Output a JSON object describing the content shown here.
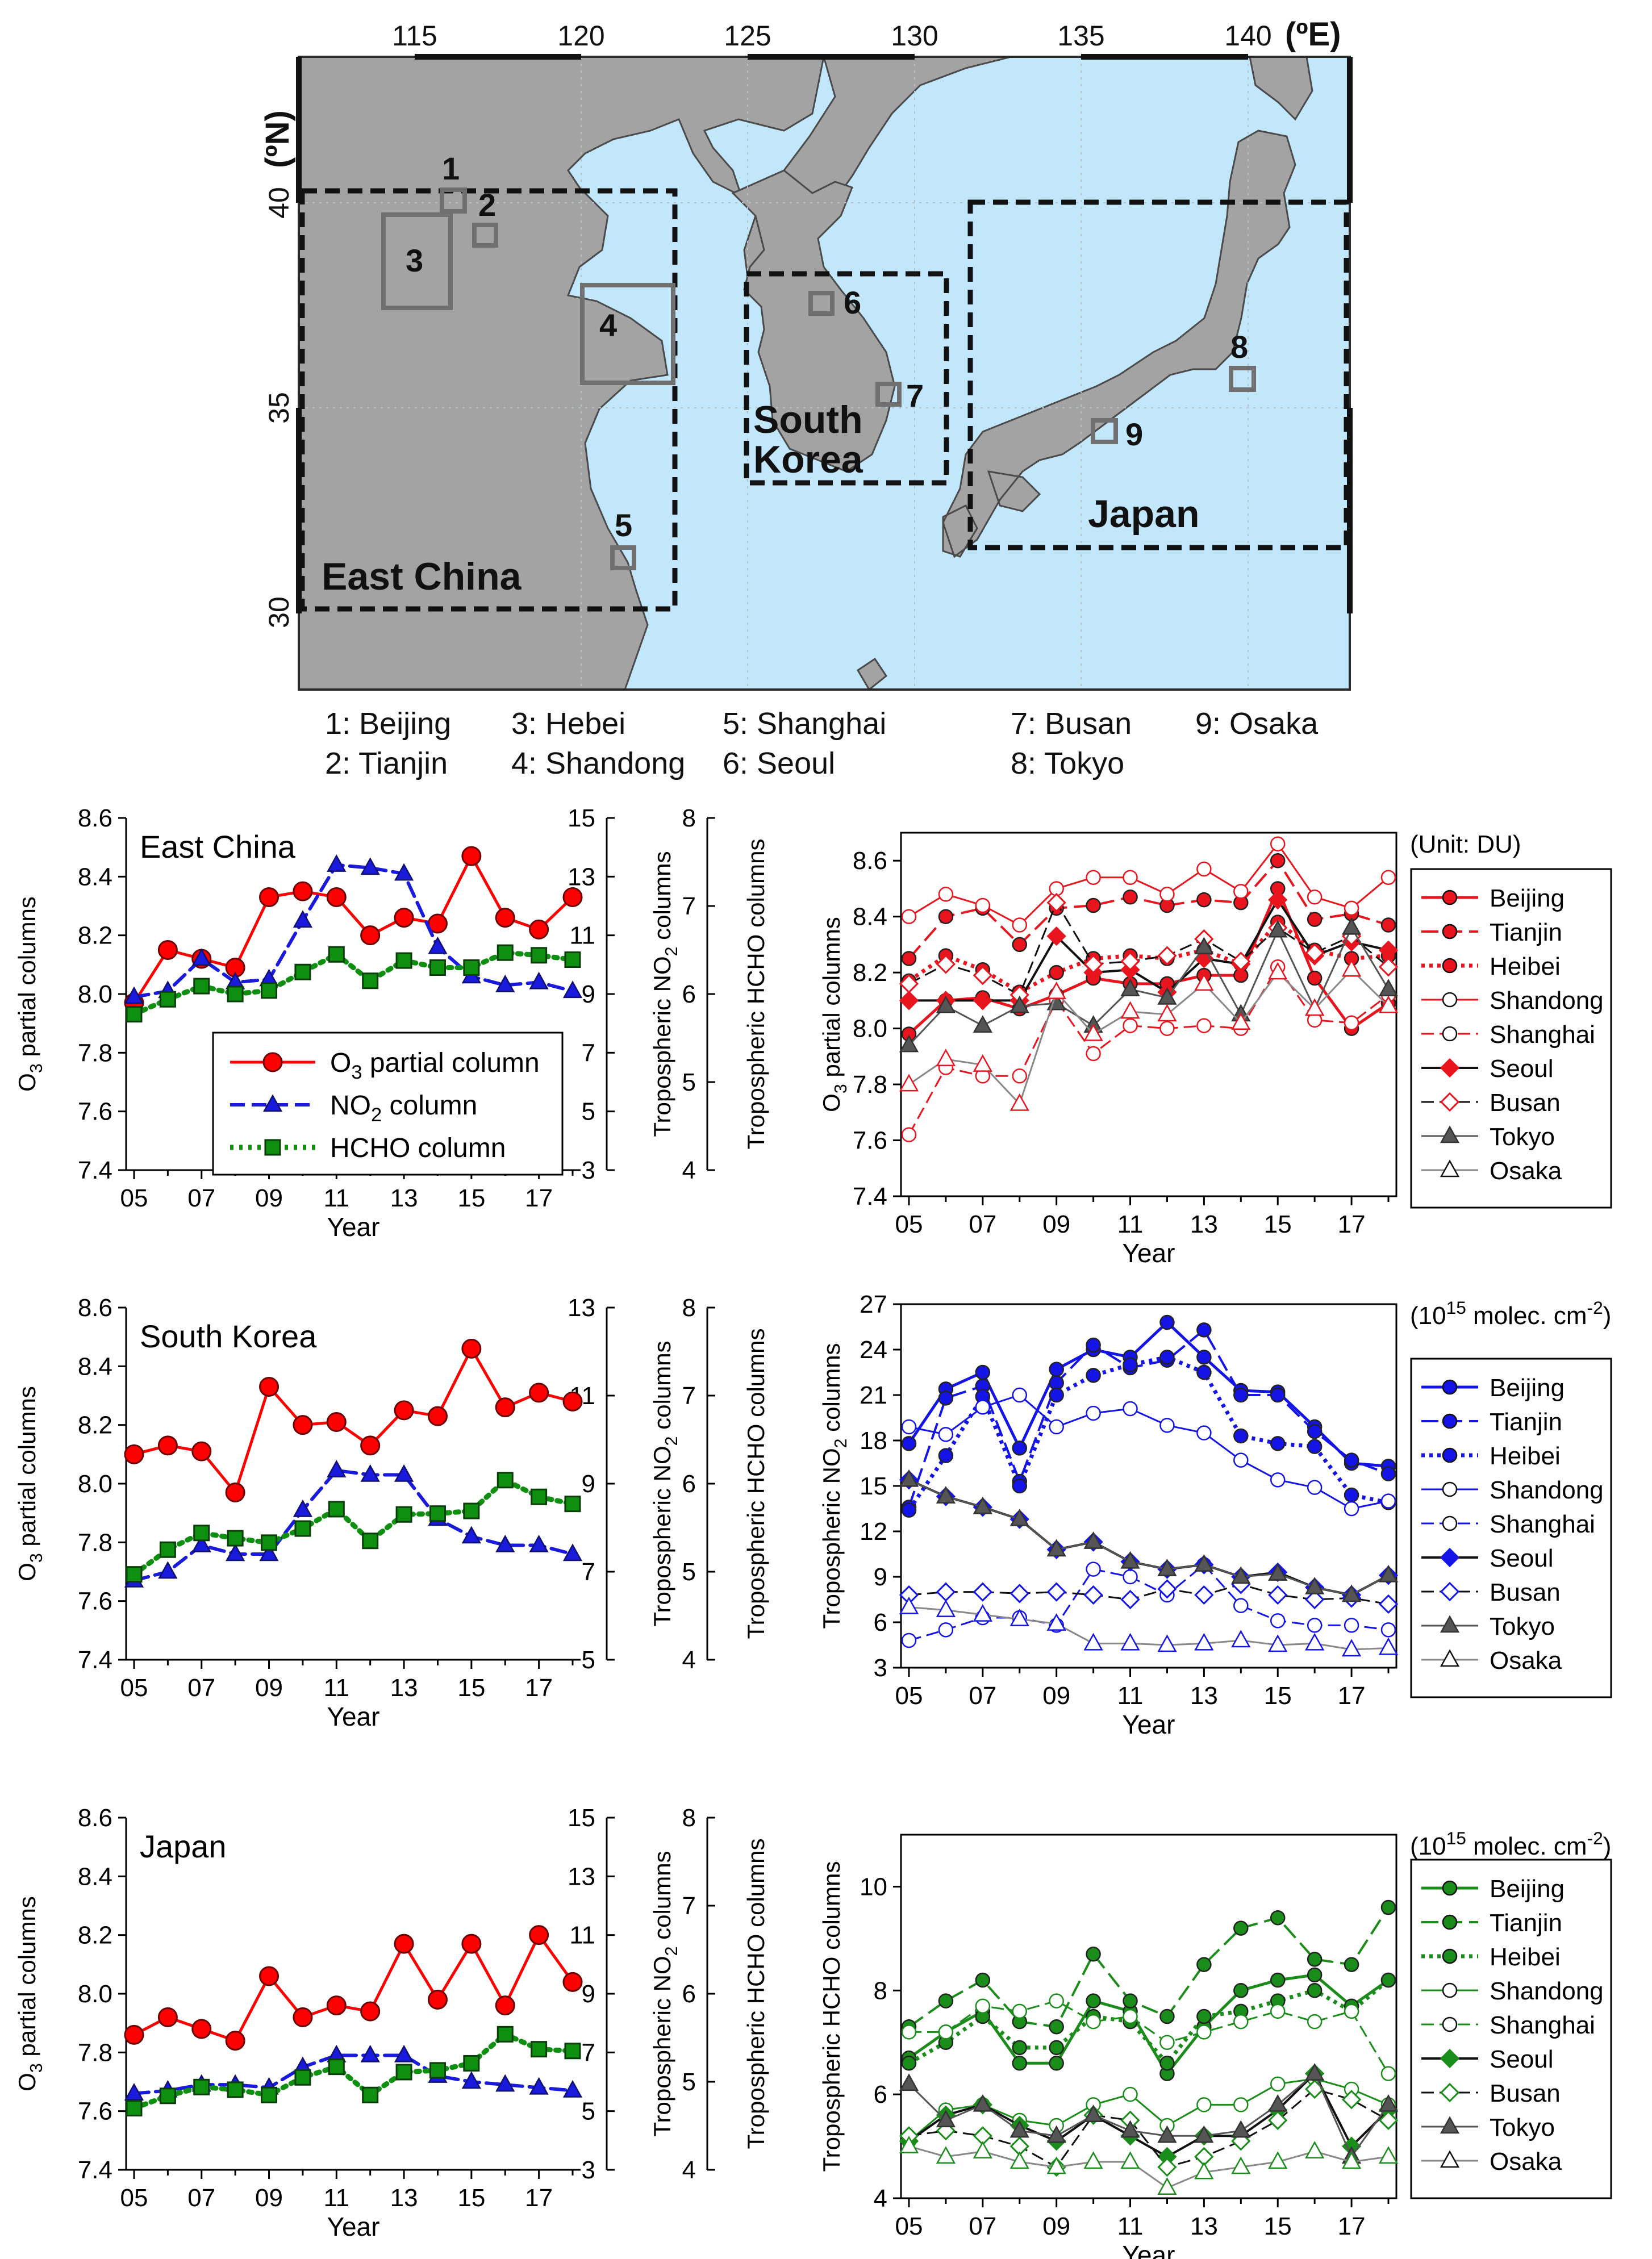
{
  "map": {
    "lon_ticks": [
      "115",
      "120",
      "125",
      "130",
      "135",
      "140"
    ],
    "lon_unit": "(ºE)",
    "lat_ticks": [
      "30",
      "35",
      "40"
    ],
    "lat_unit": "(ºN)",
    "region_labels": [
      "East China",
      "South Korea",
      "Japan"
    ],
    "site_numbers": [
      "1",
      "2",
      "3",
      "4",
      "5",
      "6",
      "7",
      "8",
      "9"
    ],
    "site_legend": [
      "1: Beijing",
      "2: Tianjin",
      "3: Hebei",
      "4: Shandong",
      "5: Shanghai",
      "6: Seoul",
      "7: Busan",
      "8: Tokyo",
      "9: Osaka"
    ],
    "colors": {
      "land": "#a3a3a3",
      "sea": "#c3e7fa"
    }
  },
  "years": [
    "05",
    "06",
    "07",
    "08",
    "09",
    "10",
    "11",
    "12",
    "13",
    "14",
    "15",
    "16",
    "17",
    "18"
  ],
  "xlabel": "Year",
  "x_tick_labels": [
    "05",
    "07",
    "09",
    "11",
    "13",
    "15",
    "17"
  ],
  "panels_left_legend": [
    "O3 partial column",
    "NO2 column",
    "HCHO column"
  ],
  "chart_data": [
    {
      "type": "line",
      "title": "East China",
      "xlabel": "Year",
      "ylabel": "O3 partial columns",
      "y2label": "Tropospheric NO2 columns",
      "y3label": "Tropospheric HCHO columns",
      "ylim": [
        7.4,
        8.6
      ],
      "y_ticks": [
        "7.4",
        "7.6",
        "7.8",
        "8.0",
        "8.2",
        "8.4",
        "8.6"
      ],
      "y2lim": [
        3,
        15
      ],
      "y2_ticks": [
        "3",
        "5",
        "7",
        "9",
        "11",
        "13",
        "15"
      ],
      "y3lim": [
        4,
        8
      ],
      "y3_ticks": [
        "4",
        "5",
        "6",
        "7",
        "8"
      ],
      "series": [
        {
          "name": "O3 partial column",
          "axis": "y",
          "color": "#ff0000",
          "values": [
            7.97,
            8.15,
            8.12,
            8.09,
            8.33,
            8.35,
            8.33,
            8.2,
            8.26,
            8.24,
            8.47,
            8.26,
            8.22,
            8.33
          ]
        },
        {
          "name": "NO2 column",
          "axis": "y2",
          "color": "#1a1adc",
          "values": [
            8.9,
            9.1,
            10.2,
            9.4,
            9.5,
            11.5,
            13.4,
            13.3,
            13.1,
            10.6,
            9.6,
            9.3,
            9.4,
            9.1
          ]
        },
        {
          "name": "HCHO column",
          "axis": "y3",
          "color": "#0f8f0f",
          "values": [
            5.77,
            5.94,
            6.09,
            6.0,
            6.04,
            6.25,
            6.45,
            6.15,
            6.38,
            6.3,
            6.3,
            6.47,
            6.44,
            6.39
          ]
        }
      ]
    },
    {
      "type": "line",
      "title": "",
      "xlabel": "Year",
      "ylabel": "O3 partial columns",
      "unit_note": "(Unit: DU)",
      "ylim": [
        7.4,
        8.7
      ],
      "y_ticks": [
        "7.4",
        "7.6",
        "7.8",
        "8.0",
        "8.2",
        "8.4",
        "8.6"
      ],
      "series": [
        {
          "name": "Beijing",
          "color": "#e8141e",
          "values": [
            7.98,
            8.1,
            8.11,
            8.07,
            8.12,
            8.18,
            8.16,
            8.16,
            8.19,
            8.19,
            8.5,
            8.18,
            8.0,
            8.09
          ]
        },
        {
          "name": "Tianjin",
          "color": "#e8141e",
          "values": [
            8.25,
            8.4,
            8.43,
            8.3,
            8.43,
            8.44,
            8.47,
            8.44,
            8.46,
            8.45,
            8.6,
            8.39,
            8.41,
            8.37
          ]
        },
        {
          "name": "Heibei",
          "color": "#e8141e",
          "values": [
            8.17,
            8.26,
            8.21,
            8.13,
            8.2,
            8.25,
            8.26,
            8.25,
            8.28,
            8.23,
            8.38,
            8.28,
            8.25,
            8.26
          ]
        },
        {
          "name": "Shandong",
          "color": "#e8141e",
          "values": [
            8.4,
            8.48,
            8.44,
            8.37,
            8.5,
            8.54,
            8.54,
            8.48,
            8.57,
            8.49,
            8.66,
            8.47,
            8.43,
            8.54
          ]
        },
        {
          "name": "Shanghai",
          "color": "#e8141e",
          "values": [
            7.62,
            7.86,
            7.83,
            7.83,
            8.1,
            7.91,
            8.01,
            8.0,
            8.01,
            8.0,
            8.22,
            8.03,
            8.02,
            8.12
          ]
        },
        {
          "name": "Seoul",
          "color": "#111111",
          "values": [
            8.1,
            8.1,
            8.1,
            8.1,
            8.33,
            8.2,
            8.21,
            8.13,
            8.25,
            8.23,
            8.46,
            8.26,
            8.31,
            8.28
          ]
        },
        {
          "name": "Busan",
          "color": "#111111",
          "values": [
            8.16,
            8.23,
            8.19,
            8.12,
            8.45,
            8.23,
            8.24,
            8.26,
            8.32,
            8.24,
            8.36,
            8.27,
            8.33,
            8.22
          ]
        },
        {
          "name": "Tokyo",
          "color": "#555555",
          "values": [
            7.94,
            8.08,
            8.01,
            8.08,
            8.09,
            8.01,
            8.14,
            8.11,
            8.29,
            8.05,
            8.35,
            8.07,
            8.36,
            8.14
          ]
        },
        {
          "name": "Osaka",
          "color": "#888888",
          "values": [
            7.8,
            7.89,
            7.87,
            7.73,
            8.13,
            7.98,
            8.06,
            8.05,
            8.16,
            8.02,
            8.2,
            8.07,
            8.21,
            8.08
          ]
        }
      ]
    },
    {
      "type": "line",
      "title": "South Korea",
      "xlabel": "Year",
      "ylabel": "O3 partial columns",
      "y2label": "Tropospheric NO2 columns",
      "y3label": "Tropospheric HCHO columns",
      "ylim": [
        7.4,
        8.6
      ],
      "y_ticks": [
        "7.4",
        "7.6",
        "7.8",
        "8.0",
        "8.2",
        "8.4",
        "8.6"
      ],
      "y2lim": [
        5,
        13
      ],
      "y2_ticks": [
        "5",
        "7",
        "9",
        "11",
        "13"
      ],
      "y3lim": [
        4,
        8
      ],
      "y3_ticks": [
        "4",
        "5",
        "6",
        "7",
        "8"
      ],
      "series": [
        {
          "name": "O3 partial column",
          "axis": "y",
          "color": "#ff0000",
          "values": [
            8.1,
            8.13,
            8.11,
            7.97,
            8.33,
            8.2,
            8.21,
            8.13,
            8.25,
            8.23,
            8.46,
            8.26,
            8.31,
            8.28
          ]
        },
        {
          "name": "NO2 column",
          "axis": "y2",
          "color": "#1a1adc",
          "values": [
            6.8,
            7.0,
            7.6,
            7.4,
            7.4,
            8.4,
            9.3,
            9.2,
            9.2,
            8.2,
            7.8,
            7.6,
            7.6,
            7.4
          ]
        },
        {
          "name": "HCHO column",
          "axis": "y3",
          "color": "#0f8f0f",
          "values": [
            4.97,
            5.25,
            5.44,
            5.38,
            5.33,
            5.49,
            5.71,
            5.35,
            5.65,
            5.66,
            5.69,
            6.04,
            5.85,
            5.77
          ]
        }
      ]
    },
    {
      "type": "line",
      "title": "",
      "xlabel": "Year",
      "ylabel": "Tropospheric NO2 columns",
      "unit_note": "(10^15 molec. cm^-2)",
      "ylim": [
        3,
        27
      ],
      "y_ticks": [
        "3",
        "6",
        "9",
        "12",
        "15",
        "18",
        "21",
        "24",
        "27"
      ],
      "series": [
        {
          "name": "Beijing",
          "color": "#1414e6",
          "values": [
            17.8,
            21.4,
            22.5,
            17.5,
            22.7,
            24.0,
            23.5,
            25.8,
            23.5,
            21.3,
            21.2,
            18.9,
            16.5,
            16.3
          ]
        },
        {
          "name": "Tianjin",
          "color": "#1414e6",
          "values": [
            13.6,
            20.8,
            21.6,
            15.3,
            21.8,
            24.3,
            22.8,
            23.3,
            25.3,
            21.0,
            21.0,
            18.6,
            16.7,
            15.8
          ]
        },
        {
          "name": "Heibei",
          "color": "#1414e6",
          "values": [
            13.4,
            17.0,
            20.9,
            15.0,
            21.0,
            22.3,
            23.0,
            23.5,
            22.5,
            18.3,
            17.8,
            17.6,
            14.4,
            13.9
          ]
        },
        {
          "name": "Shandong",
          "color": "#1414e6",
          "values": [
            18.9,
            18.4,
            20.2,
            21.0,
            18.9,
            19.8,
            20.1,
            19.0,
            18.5,
            16.7,
            15.4,
            14.9,
            13.5,
            14.0
          ]
        },
        {
          "name": "Shanghai",
          "color": "#1414e6",
          "values": [
            4.8,
            5.5,
            6.3,
            6.3,
            5.8,
            9.5,
            9.0,
            7.8,
            9.8,
            7.1,
            6.1,
            5.8,
            5.8,
            5.5
          ]
        },
        {
          "name": "Seoul",
          "color": "#111111",
          "values": [
            15.4,
            14.3,
            13.6,
            12.8,
            10.8,
            11.3,
            10.0,
            9.5,
            9.8,
            9.0,
            9.3,
            8.3,
            7.8,
            9.1
          ]
        },
        {
          "name": "Busan",
          "color": "#111111",
          "values": [
            7.8,
            8.0,
            8.0,
            7.9,
            8.0,
            7.8,
            7.5,
            8.2,
            7.8,
            8.5,
            7.8,
            7.5,
            7.6,
            7.2
          ]
        },
        {
          "name": "Tokyo",
          "color": "#555555",
          "values": [
            15.4,
            14.3,
            13.6,
            12.8,
            10.8,
            11.3,
            10.0,
            9.5,
            9.8,
            9.0,
            9.2,
            8.3,
            7.8,
            9.1
          ]
        },
        {
          "name": "Osaka",
          "color": "#888888",
          "values": [
            7.0,
            6.8,
            6.5,
            6.2,
            5.9,
            4.6,
            4.6,
            4.5,
            4.6,
            4.8,
            4.5,
            4.6,
            4.2,
            4.3
          ]
        }
      ]
    },
    {
      "type": "line",
      "title": "Japan",
      "xlabel": "Year",
      "ylabel": "O3 partial columns",
      "y2label": "Tropospheric NO2 columns",
      "y3label": "Tropospheric HCHO columns",
      "ylim": [
        7.4,
        8.6
      ],
      "y_ticks": [
        "7.4",
        "7.6",
        "7.8",
        "8.0",
        "8.2",
        "8.4",
        "8.6"
      ],
      "y2lim": [
        3,
        15
      ],
      "y2_ticks": [
        "3",
        "5",
        "7",
        "9",
        "11",
        "13",
        "15"
      ],
      "y3lim": [
        4,
        8
      ],
      "y3_ticks": [
        "4",
        "5",
        "6",
        "7",
        "8"
      ],
      "series": [
        {
          "name": "O3 partial column",
          "axis": "y",
          "color": "#ff0000",
          "values": [
            7.86,
            7.92,
            7.88,
            7.84,
            8.06,
            7.92,
            7.96,
            7.94,
            8.17,
            7.98,
            8.17,
            7.96,
            8.2,
            8.04
          ]
        },
        {
          "name": "NO2 column",
          "axis": "y2",
          "color": "#1a1adc",
          "values": [
            5.6,
            5.7,
            5.9,
            5.9,
            5.8,
            6.5,
            6.9,
            6.9,
            6.9,
            6.2,
            6.0,
            5.9,
            5.8,
            5.7
          ]
        },
        {
          "name": "HCHO column",
          "axis": "y3",
          "color": "#0f8f0f",
          "values": [
            4.7,
            4.84,
            4.94,
            4.91,
            4.85,
            5.05,
            5.17,
            4.85,
            5.11,
            5.13,
            5.21,
            5.54,
            5.37,
            5.35
          ]
        }
      ]
    },
    {
      "type": "line",
      "title": "",
      "xlabel": "Year",
      "ylabel": "Tropospheric HCHO columns",
      "unit_note": "(10^15 molec. cm^-2)",
      "ylim": [
        4,
        11
      ],
      "y_ticks": [
        "4",
        "6",
        "8",
        "10"
      ],
      "series": [
        {
          "name": "Beijing",
          "color": "#1a8c1a",
          "values": [
            6.7,
            7.2,
            7.6,
            6.6,
            6.6,
            7.8,
            7.6,
            6.4,
            7.3,
            8.0,
            8.2,
            8.3,
            7.7,
            8.2
          ]
        },
        {
          "name": "Tianjin",
          "color": "#1a8c1a",
          "values": [
            7.3,
            7.8,
            8.2,
            7.4,
            7.3,
            8.7,
            7.8,
            7.5,
            8.5,
            9.2,
            9.4,
            8.6,
            8.5,
            9.6
          ]
        },
        {
          "name": "Heibei",
          "color": "#1a8c1a",
          "values": [
            6.6,
            7.0,
            7.5,
            6.9,
            6.9,
            7.5,
            7.4,
            6.6,
            7.5,
            7.6,
            7.8,
            8.0,
            7.6,
            8.2
          ]
        },
        {
          "name": "Shandong",
          "color": "#1a8c1a",
          "values": [
            5.1,
            5.7,
            5.8,
            5.5,
            5.4,
            5.8,
            6.0,
            5.4,
            5.8,
            5.8,
            6.2,
            6.3,
            6.1,
            5.8
          ]
        },
        {
          "name": "Shanghai",
          "color": "#1a8c1a",
          "values": [
            7.2,
            7.2,
            7.7,
            7.6,
            7.8,
            7.4,
            7.5,
            7.0,
            7.2,
            7.4,
            7.6,
            7.4,
            7.6,
            6.4
          ]
        },
        {
          "name": "Seoul",
          "color": "#111111",
          "values": [
            5.1,
            5.6,
            5.8,
            5.4,
            5.1,
            5.6,
            5.2,
            4.8,
            5.2,
            5.2,
            5.7,
            6.4,
            5.0,
            5.7
          ]
        },
        {
          "name": "Busan",
          "color": "#111111",
          "values": [
            5.2,
            5.3,
            5.2,
            5.0,
            4.6,
            5.6,
            5.5,
            4.6,
            4.8,
            5.1,
            5.5,
            6.1,
            5.9,
            5.5
          ]
        },
        {
          "name": "Tokyo",
          "color": "#555555",
          "values": [
            6.2,
            5.5,
            5.8,
            5.3,
            5.2,
            5.6,
            5.3,
            5.2,
            5.2,
            5.3,
            5.8,
            6.4,
            4.8,
            5.8
          ]
        },
        {
          "name": "Osaka",
          "color": "#888888",
          "values": [
            5.0,
            4.8,
            4.9,
            4.7,
            4.6,
            4.7,
            4.7,
            4.2,
            4.5,
            4.6,
            4.7,
            4.9,
            4.7,
            4.8
          ]
        }
      ]
    }
  ]
}
